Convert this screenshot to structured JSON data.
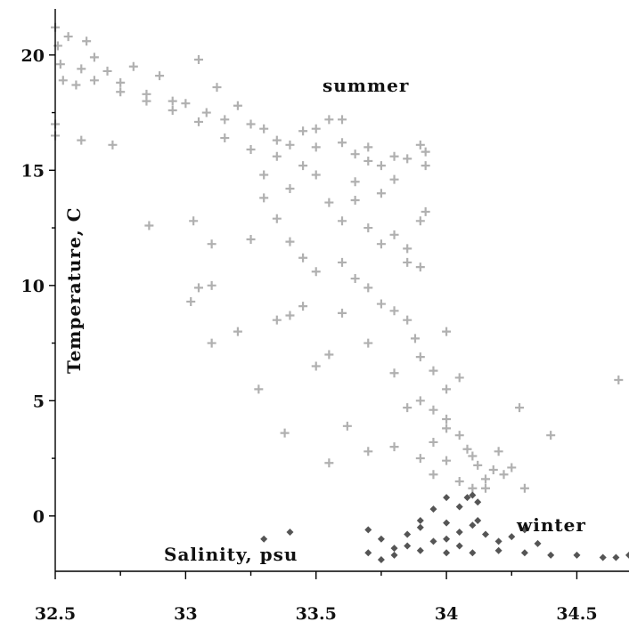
{
  "chart_data": {
    "type": "scatter",
    "title": "",
    "xlabel": "Salinity, psu",
    "ylabel": "Temperature, C",
    "xlim": [
      32.5,
      34.7
    ],
    "ylim": [
      -2.4,
      22
    ],
    "x_ticks": [
      32.5,
      33,
      33.5,
      34,
      34.5
    ],
    "x_tick_labels": [
      "32.5",
      "33",
      "33.5",
      "34",
      "34.5"
    ],
    "y_ticks": [
      0,
      5,
      10,
      15,
      20
    ],
    "y_tick_labels": [
      "0",
      "5",
      "10",
      "15",
      "20"
    ],
    "grid": false,
    "legend": "none",
    "annotations": [
      {
        "text": "summer",
        "x": 33.8,
        "y": 18.4
      },
      {
        "text": "winter",
        "x": 34.38,
        "y": -0.5
      }
    ],
    "series": [
      {
        "color": "#b0b0b0",
        "marker": "plus",
        "points": [
          [
            32.5,
            21.2
          ],
          [
            32.51,
            20.4
          ],
          [
            32.52,
            19.6
          ],
          [
            32.53,
            18.9
          ],
          [
            32.55,
            20.8
          ],
          [
            32.5,
            16.5
          ],
          [
            32.5,
            17.0
          ],
          [
            32.58,
            18.7
          ],
          [
            32.62,
            20.6
          ],
          [
            32.65,
            19.9
          ],
          [
            32.7,
            19.3
          ],
          [
            32.75,
            18.8
          ],
          [
            32.8,
            19.5
          ],
          [
            32.85,
            18.3
          ],
          [
            32.9,
            19.1
          ],
          [
            32.95,
            18.0
          ],
          [
            33.0,
            17.9
          ],
          [
            33.05,
            19.8
          ],
          [
            33.08,
            17.5
          ],
          [
            33.12,
            18.6
          ],
          [
            33.15,
            17.2
          ],
          [
            33.2,
            17.8
          ],
          [
            33.25,
            17.0
          ],
          [
            33.3,
            16.8
          ],
          [
            33.35,
            16.3
          ],
          [
            33.4,
            16.1
          ],
          [
            33.45,
            16.7
          ],
          [
            33.5,
            16.0
          ],
          [
            33.55,
            17.2
          ],
          [
            33.6,
            16.2
          ],
          [
            33.65,
            15.7
          ],
          [
            33.7,
            16.0
          ],
          [
            33.75,
            15.2
          ],
          [
            33.8,
            15.6
          ],
          [
            33.85,
            15.5
          ],
          [
            33.9,
            16.1
          ],
          [
            33.92,
            15.8
          ],
          [
            33.3,
            14.8
          ],
          [
            33.4,
            14.2
          ],
          [
            33.5,
            14.8
          ],
          [
            33.55,
            13.6
          ],
          [
            33.6,
            12.8
          ],
          [
            33.65,
            13.7
          ],
          [
            33.7,
            12.5
          ],
          [
            33.75,
            11.8
          ],
          [
            33.8,
            12.2
          ],
          [
            33.85,
            11.6
          ],
          [
            33.9,
            12.8
          ],
          [
            33.6,
            11.0
          ],
          [
            33.65,
            10.3
          ],
          [
            33.7,
            9.9
          ],
          [
            33.75,
            9.2
          ],
          [
            33.8,
            8.9
          ],
          [
            33.85,
            8.5
          ],
          [
            33.88,
            7.7
          ],
          [
            33.9,
            6.9
          ],
          [
            33.95,
            6.3
          ],
          [
            34.0,
            5.5
          ],
          [
            33.95,
            4.6
          ],
          [
            34.0,
            4.2
          ],
          [
            34.05,
            3.5
          ],
          [
            34.08,
            2.9
          ],
          [
            34.12,
            2.2
          ],
          [
            34.15,
            1.6
          ],
          [
            34.1,
            1.2
          ],
          [
            34.05,
            1.5
          ],
          [
            34.0,
            2.4
          ],
          [
            33.95,
            3.2
          ],
          [
            33.9,
            2.5
          ],
          [
            34.18,
            2.0
          ],
          [
            34.22,
            1.8
          ],
          [
            34.25,
            2.1
          ],
          [
            33.55,
            7.0
          ],
          [
            33.5,
            6.5
          ],
          [
            33.45,
            9.1
          ],
          [
            33.4,
            8.7
          ],
          [
            33.35,
            8.5
          ],
          [
            33.38,
            3.6
          ],
          [
            33.55,
            2.3
          ],
          [
            33.28,
            5.5
          ],
          [
            33.1,
            7.5
          ],
          [
            33.02,
            9.3
          ],
          [
            33.05,
            9.9
          ],
          [
            33.1,
            10.0
          ],
          [
            33.03,
            12.8
          ],
          [
            33.1,
            11.8
          ],
          [
            32.86,
            12.6
          ],
          [
            32.72,
            16.1
          ],
          [
            32.6,
            16.3
          ],
          [
            33.2,
            8.0
          ],
          [
            33.25,
            12.0
          ],
          [
            33.35,
            12.9
          ],
          [
            33.45,
            11.2
          ],
          [
            33.62,
            3.9
          ],
          [
            33.7,
            2.8
          ],
          [
            33.8,
            3.0
          ],
          [
            33.85,
            4.7
          ],
          [
            34.0,
            8.0
          ],
          [
            34.05,
            6.0
          ],
          [
            34.2,
            2.8
          ],
          [
            34.28,
            4.7
          ],
          [
            34.4,
            3.5
          ],
          [
            34.3,
            1.2
          ],
          [
            34.66,
            5.9
          ],
          [
            33.92,
            15.2
          ],
          [
            33.92,
            13.2
          ],
          [
            33.9,
            10.8
          ],
          [
            33.85,
            11.0
          ],
          [
            33.65,
            14.5
          ],
          [
            33.75,
            14.0
          ],
          [
            33.45,
            15.2
          ],
          [
            33.35,
            15.6
          ],
          [
            33.25,
            15.9
          ],
          [
            33.15,
            16.4
          ],
          [
            33.05,
            17.1
          ],
          [
            32.95,
            17.6
          ],
          [
            32.85,
            18.0
          ],
          [
            32.75,
            18.4
          ],
          [
            32.65,
            18.9
          ],
          [
            32.6,
            19.4
          ],
          [
            33.5,
            16.8
          ],
          [
            33.6,
            17.2
          ],
          [
            33.7,
            15.4
          ],
          [
            33.8,
            14.6
          ],
          [
            33.3,
            13.8
          ],
          [
            33.4,
            11.9
          ],
          [
            33.5,
            10.6
          ],
          [
            33.6,
            8.8
          ],
          [
            33.7,
            7.5
          ],
          [
            33.8,
            6.2
          ],
          [
            33.9,
            5.0
          ],
          [
            34.0,
            3.8
          ],
          [
            34.1,
            2.6
          ],
          [
            34.15,
            1.2
          ],
          [
            33.95,
            1.8
          ]
        ]
      },
      {
        "color": "#555555",
        "marker": "diamond",
        "points": [
          [
            33.4,
            -0.7
          ],
          [
            33.3,
            -1.0
          ],
          [
            33.7,
            -0.6
          ],
          [
            33.75,
            -1.0
          ],
          [
            33.8,
            -1.4
          ],
          [
            33.85,
            -0.8
          ],
          [
            33.9,
            -0.5
          ],
          [
            33.95,
            -1.1
          ],
          [
            34.0,
            -0.3
          ],
          [
            34.05,
            0.4
          ],
          [
            34.08,
            0.8
          ],
          [
            34.1,
            0.9
          ],
          [
            34.12,
            0.6
          ],
          [
            34.0,
            0.8
          ],
          [
            33.95,
            0.3
          ],
          [
            33.9,
            -0.2
          ],
          [
            34.1,
            -0.4
          ],
          [
            34.15,
            -0.8
          ],
          [
            34.2,
            -1.1
          ],
          [
            34.25,
            -0.9
          ],
          [
            34.3,
            -0.6
          ],
          [
            34.35,
            -1.2
          ],
          [
            34.05,
            -1.3
          ],
          [
            34.0,
            -1.6
          ],
          [
            33.9,
            -1.5
          ],
          [
            33.8,
            -1.7
          ],
          [
            33.7,
            -1.6
          ],
          [
            33.75,
            -1.9
          ],
          [
            33.85,
            -1.3
          ],
          [
            34.1,
            -1.6
          ],
          [
            34.2,
            -1.5
          ],
          [
            34.3,
            -1.6
          ],
          [
            34.4,
            -1.7
          ],
          [
            34.5,
            -1.7
          ],
          [
            34.6,
            -1.8
          ],
          [
            34.65,
            -1.8
          ],
          [
            34.7,
            -1.7
          ],
          [
            34.0,
            -1.0
          ],
          [
            34.05,
            -0.7
          ],
          [
            34.12,
            -0.2
          ]
        ]
      }
    ]
  }
}
